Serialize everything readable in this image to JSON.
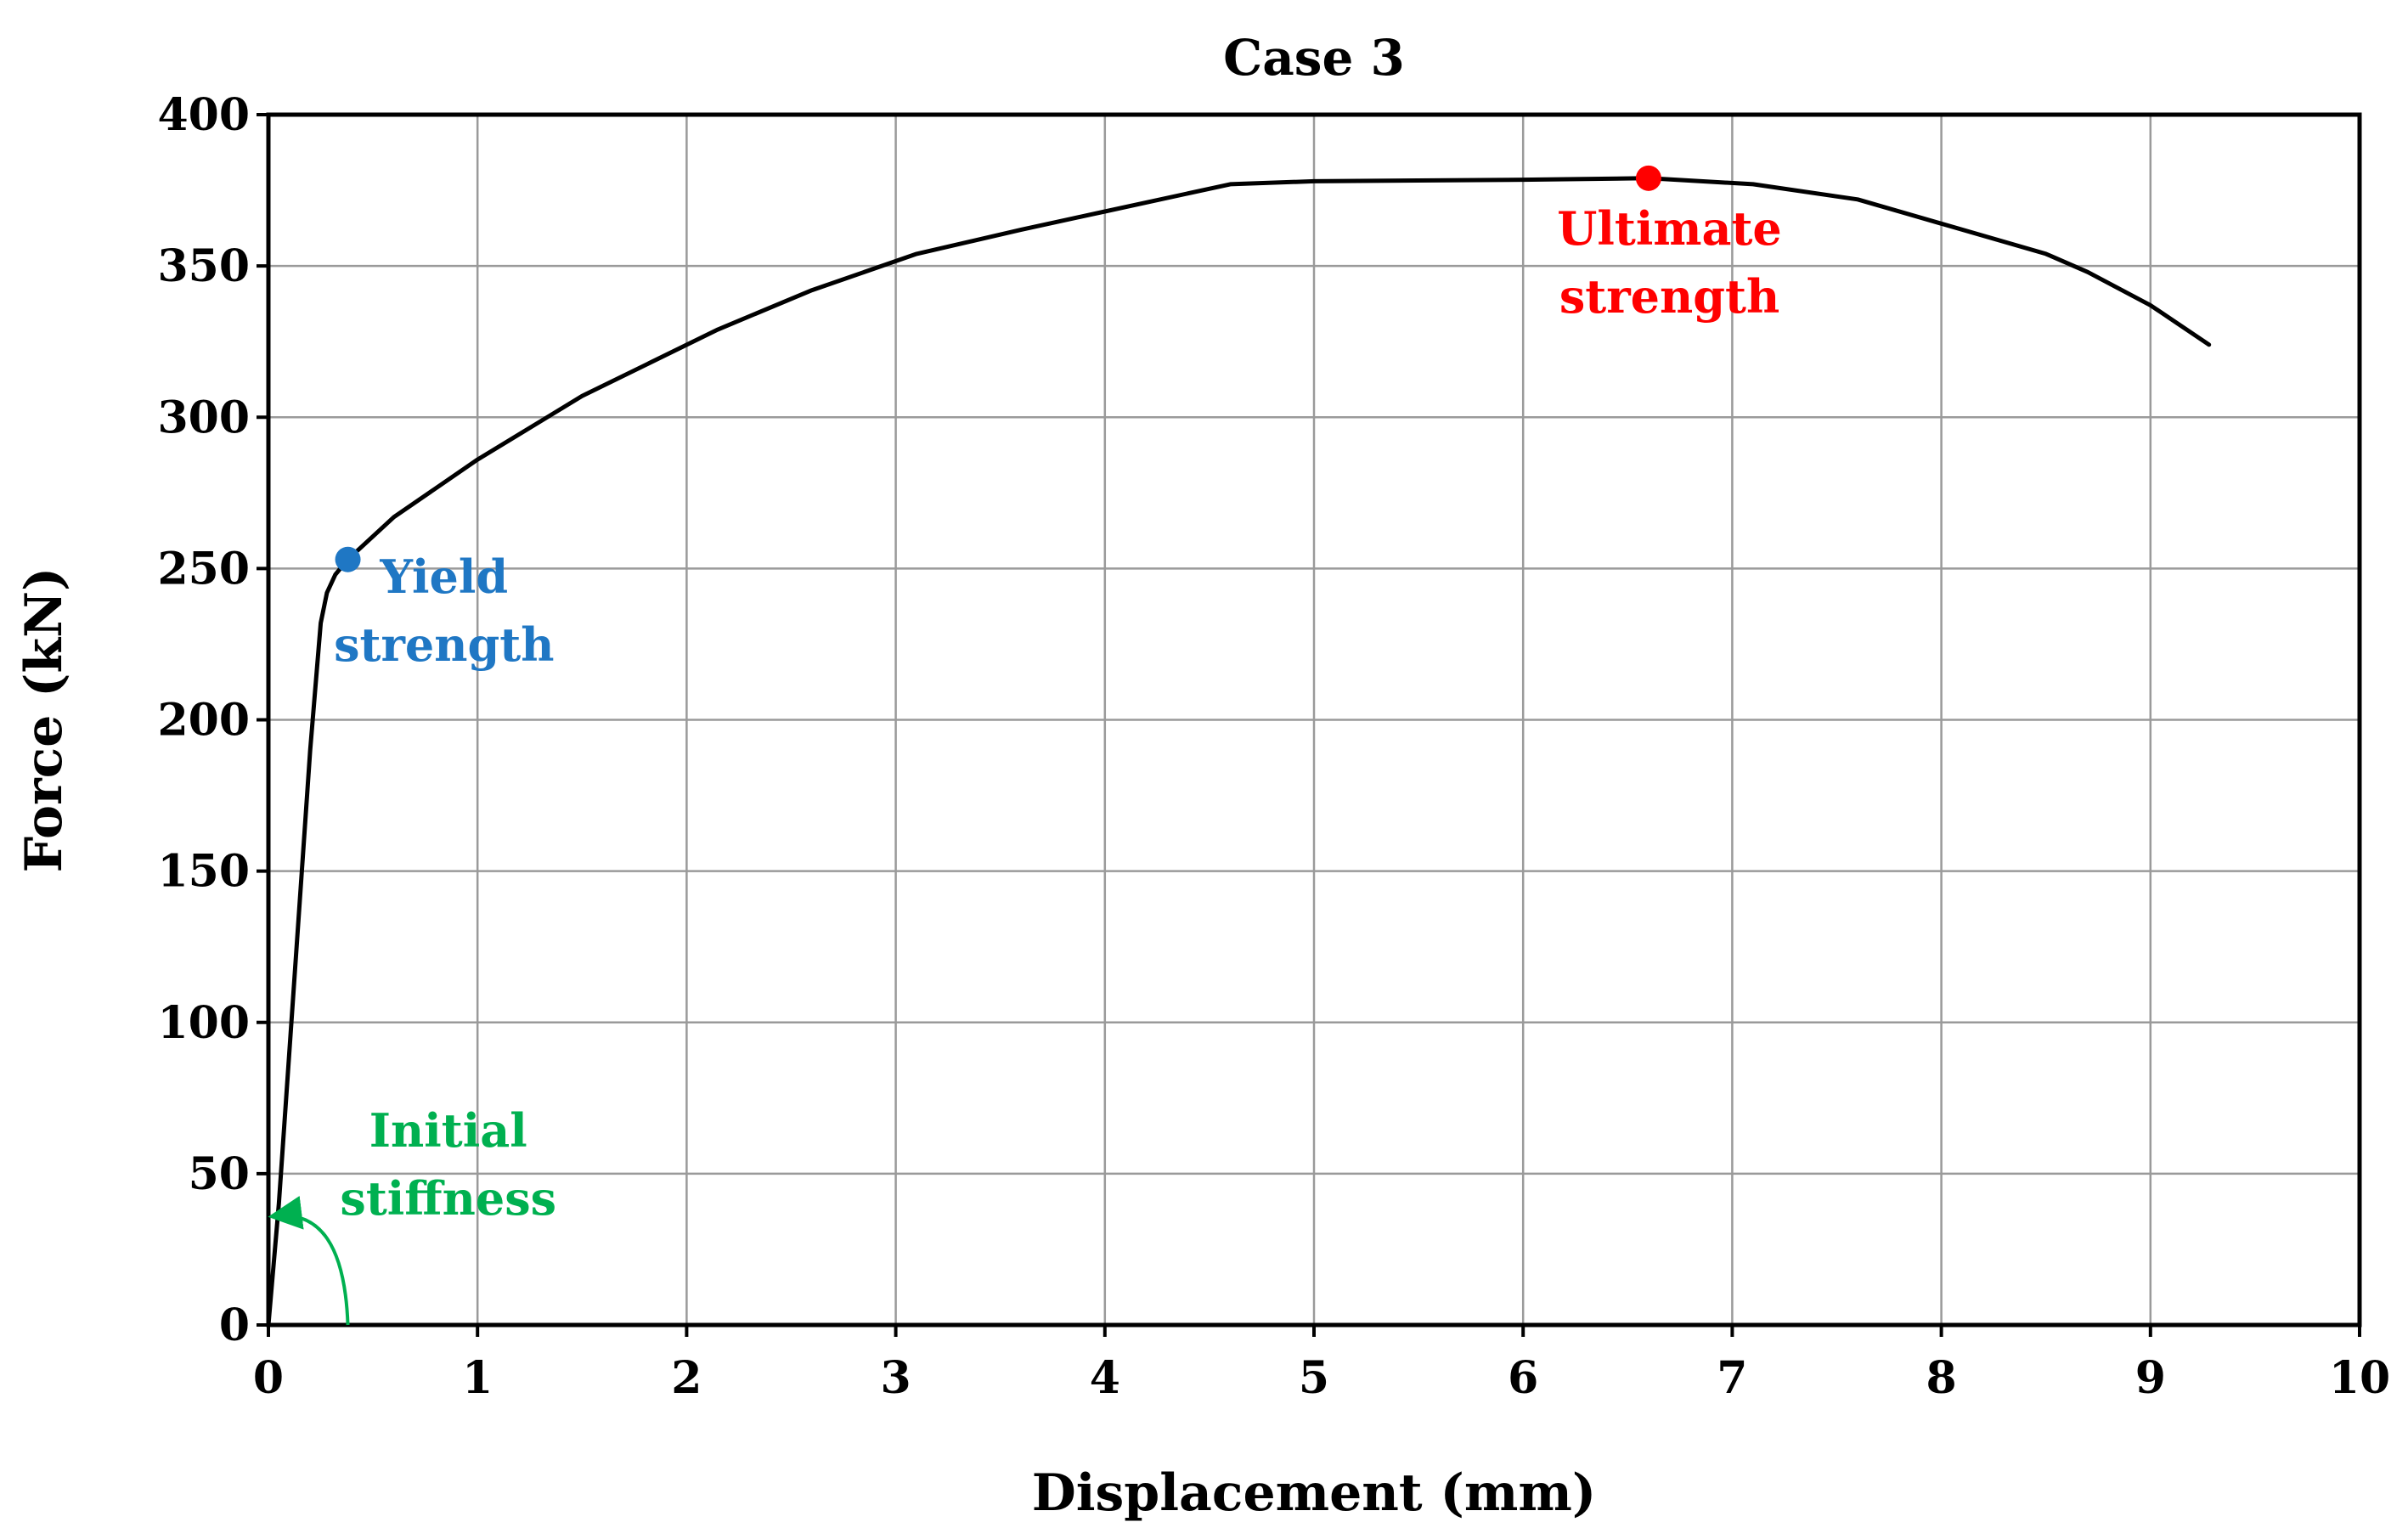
{
  "chart_data": {
    "type": "line",
    "title": "Case 3",
    "xlabel": "Displacement (mm)",
    "ylabel": "Force (kN)",
    "xlim": [
      0,
      10
    ],
    "ylim": [
      0,
      400
    ],
    "x_ticks": [
      "0",
      "1",
      "2",
      "3",
      "4",
      "5",
      "6",
      "7",
      "8",
      "9",
      "10"
    ],
    "y_ticks": [
      "0",
      "50",
      "100",
      "150",
      "200",
      "250",
      "300",
      "350",
      "400"
    ],
    "grid": true,
    "series": [
      {
        "color": "#000000",
        "x": [
          0,
          0.05,
          0.1,
          0.15,
          0.2,
          0.25,
          0.28,
          0.32,
          0.38,
          0.6,
          1.0,
          1.5,
          2.15,
          2.6,
          3.1,
          3.6,
          4.0,
          4.6,
          5.0,
          6.0,
          6.6,
          7.1,
          7.6,
          8.0,
          8.5,
          8.7,
          9.0,
          9.28
        ],
        "y": [
          0,
          40,
          90,
          140,
          190,
          232,
          242,
          248,
          253,
          267,
          286,
          307,
          329,
          342,
          354,
          362,
          368,
          377,
          378,
          378.5,
          379,
          377,
          372,
          364,
          354,
          348,
          337,
          324
        ]
      }
    ],
    "points": [
      {
        "name": "Yield strength",
        "x": 0.38,
        "y": 253,
        "color": "#1F77C4"
      },
      {
        "name": "Ultimate strength",
        "x": 6.6,
        "y": 379,
        "color": "#FF0000"
      }
    ],
    "annotations": [
      {
        "lines": [
          "Yield",
          "strength"
        ],
        "color": "#1F77C4",
        "anchor_x": 0.84,
        "anchor_y": 242
      },
      {
        "lines": [
          "Ultimate",
          "strength"
        ],
        "color": "#FF0000",
        "anchor_x": 6.7,
        "anchor_y": 357
      },
      {
        "lines": [
          "Initial",
          "stiffness"
        ],
        "color": "#00B050",
        "anchor_x": 0.86,
        "anchor_y": 59
      }
    ],
    "initial_stiffness_arrow": {
      "color": "#00B050",
      "from": [
        0.38,
        0
      ],
      "to": [
        0.03,
        36
      ]
    }
  }
}
